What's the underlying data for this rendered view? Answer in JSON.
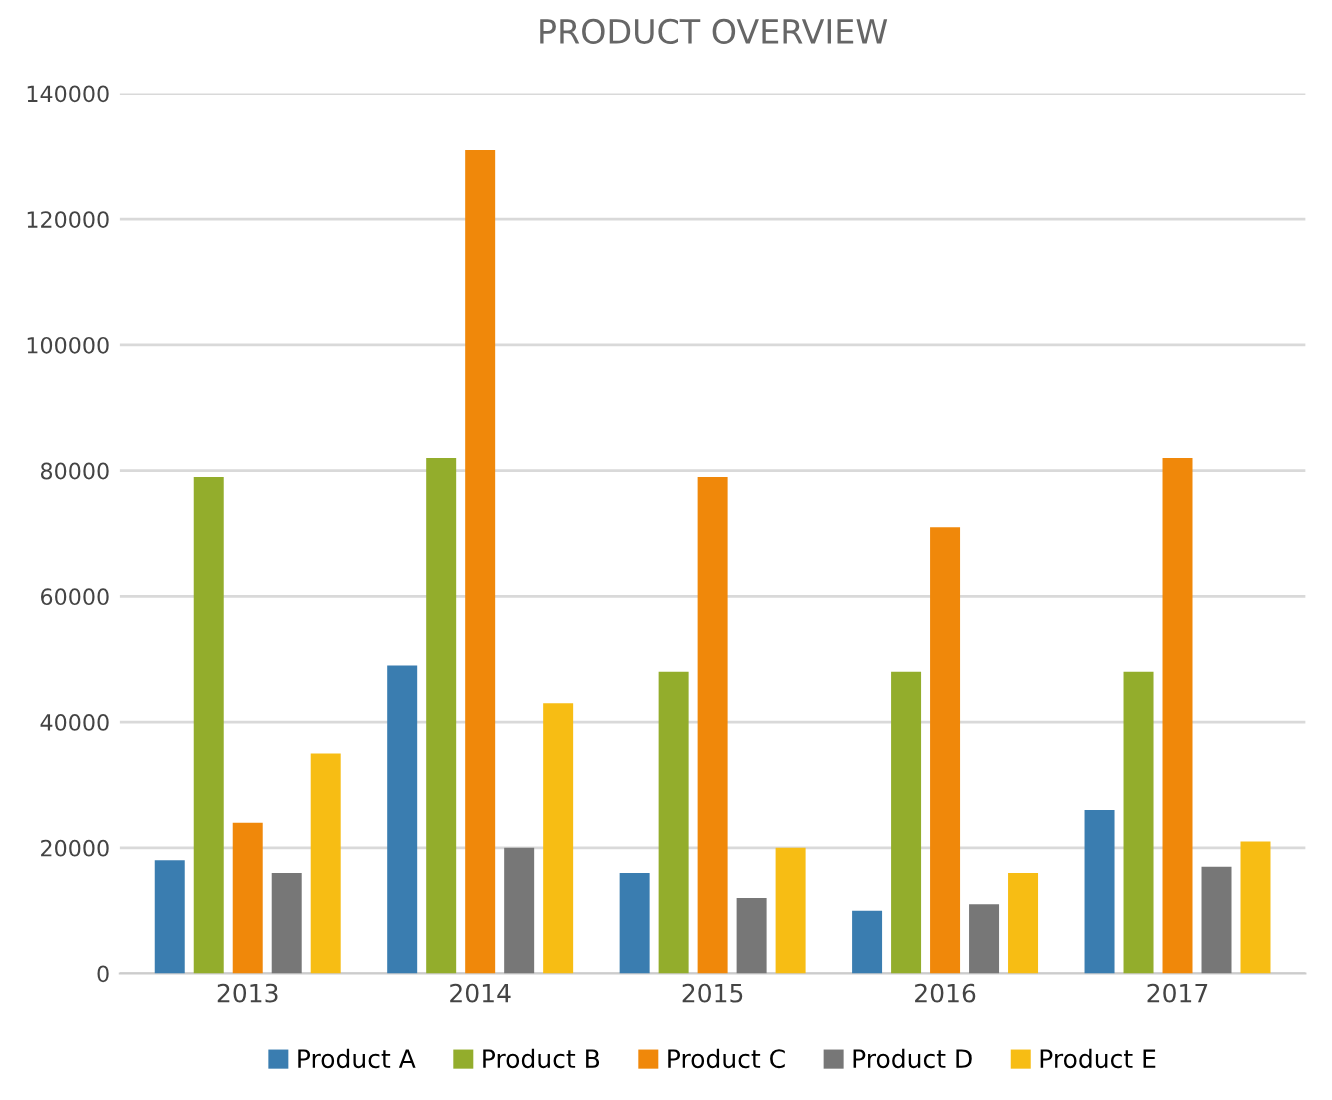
{
  "chart_data": {
    "type": "bar",
    "title": "PRODUCT OVERVIEW",
    "categories": [
      "2013",
      "2014",
      "2015",
      "2016",
      "2017"
    ],
    "series": [
      {
        "name": "Product A",
        "color": "#3a7db0",
        "values": [
          18000,
          49000,
          16000,
          10000,
          26000
        ]
      },
      {
        "name": "Product B",
        "color": "#93ad2c",
        "values": [
          79000,
          82000,
          48000,
          48000,
          48000
        ]
      },
      {
        "name": "Product C",
        "color": "#f0880a",
        "values": [
          24000,
          131000,
          79000,
          71000,
          82000
        ]
      },
      {
        "name": "Product D",
        "color": "#777777",
        "values": [
          16000,
          20000,
          12000,
          11000,
          17000
        ]
      },
      {
        "name": "Product E",
        "color": "#f7bd14",
        "values": [
          35000,
          43000,
          20000,
          16000,
          21000
        ]
      }
    ],
    "ylim": [
      0,
      140000
    ],
    "yticks": [
      0,
      20000,
      40000,
      60000,
      80000,
      100000,
      120000,
      140000
    ],
    "grid": "y",
    "legend": "bottom"
  }
}
